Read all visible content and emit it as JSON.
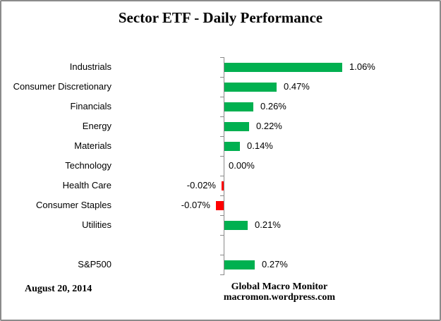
{
  "title": "Sector ETF - Daily Performance",
  "footer": {
    "date": "August 20, 2014",
    "source_line1": "Global Macro Monitor",
    "source_line2": "macromon.wordpress.com"
  },
  "colors": {
    "positive_bar": "#00B050",
    "negative_bar": "#FF0000",
    "axis": "#8a8a8a",
    "text": "#000000",
    "frame_border": "#8b8b8b"
  },
  "chart_data": {
    "type": "bar",
    "orientation": "horizontal",
    "title": "Sector ETF - Daily Performance",
    "unit": "%",
    "value_axis_labels_visible": false,
    "gridlines": false,
    "legend": "none",
    "categories": [
      "Industrials",
      "Consumer Discretionary",
      "Financials",
      "Energy",
      "Materials",
      "Technology",
      "Health Care",
      "Consumer Staples",
      "Utilities",
      "",
      "S&P500"
    ],
    "values": [
      1.06,
      0.47,
      0.26,
      0.22,
      0.14,
      0.0,
      -0.02,
      -0.07,
      0.21,
      null,
      0.27
    ],
    "data_labels": [
      "1.06%",
      "0.47%",
      "0.26%",
      "0.22%",
      "0.14%",
      "0.00%",
      "-0.02%",
      "-0.07%",
      "0.21%",
      "",
      "0.27%"
    ],
    "note": "blank category row separates sector ETFs from S&P500 benchmark"
  }
}
